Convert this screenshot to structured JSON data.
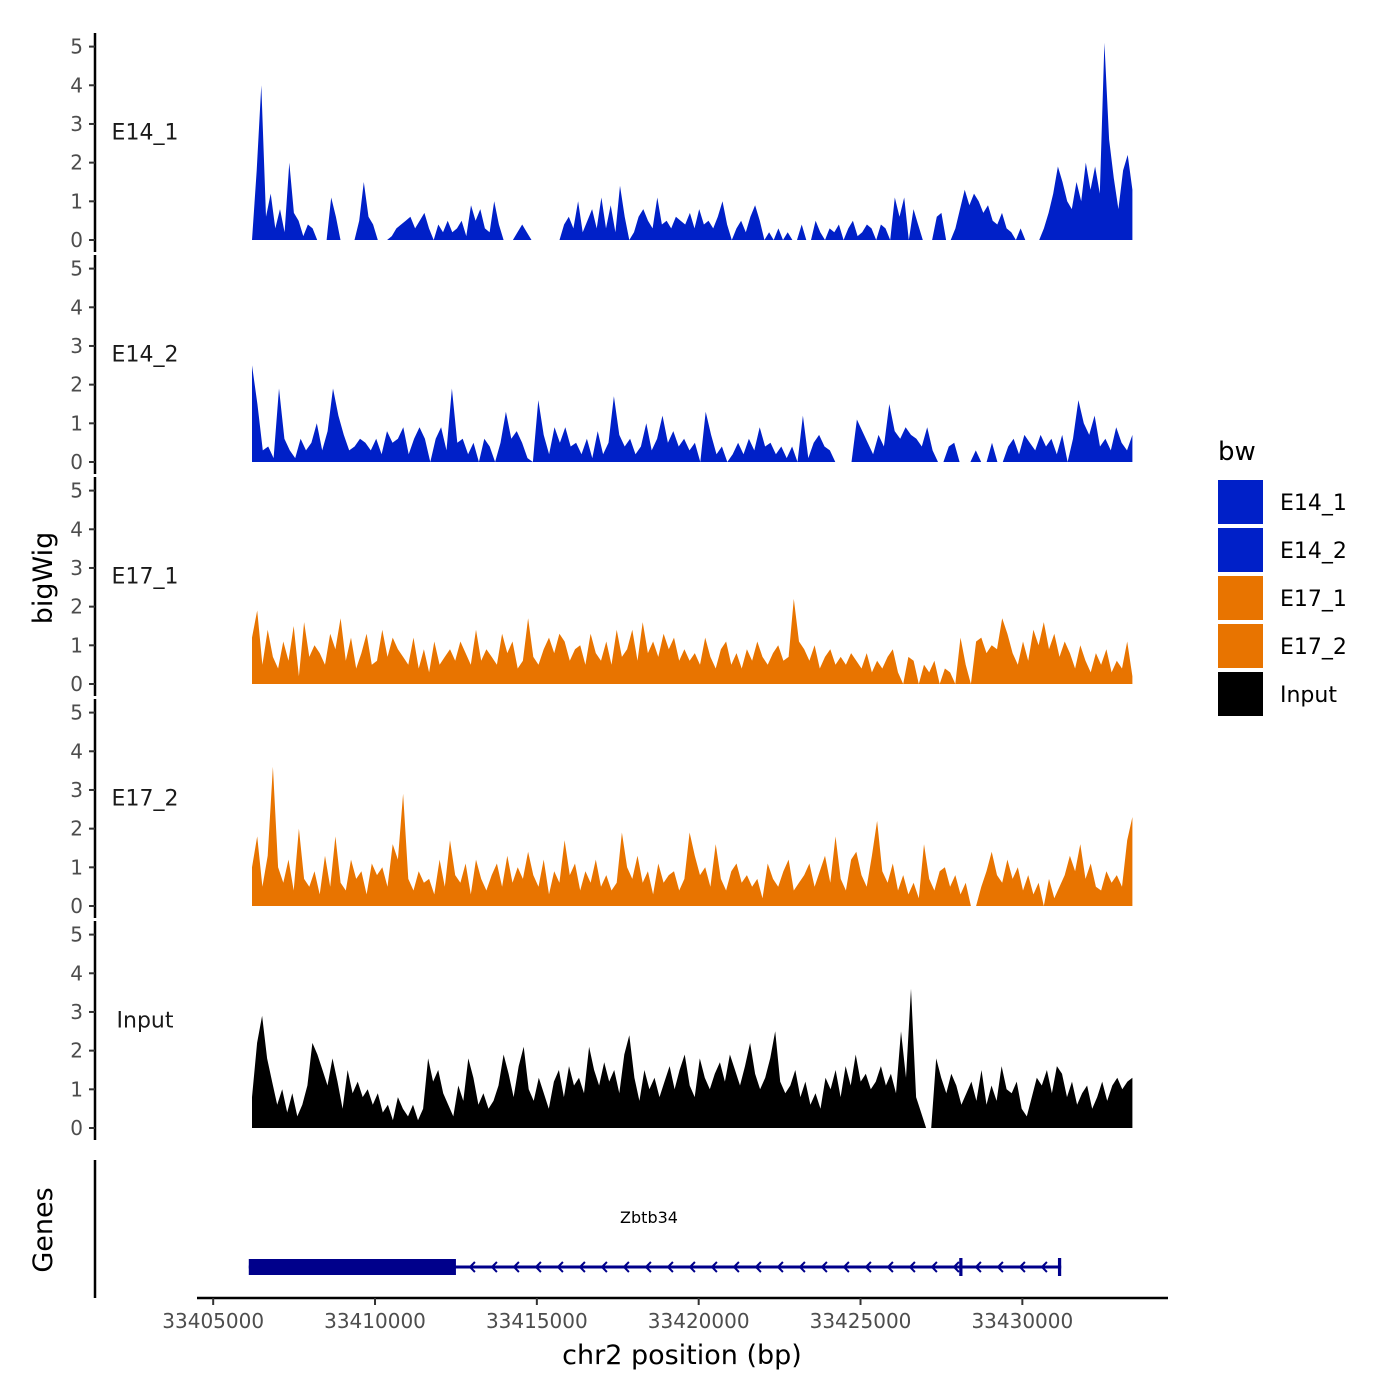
{
  "chart_data": {
    "type": "area",
    "xlabel": "chr2 position (bp)",
    "ylabel": "bigWig",
    "xlim": [
      33404500,
      33434500
    ],
    "ylim": [
      0,
      5.3
    ],
    "x_ticks": [
      33405000,
      33410000,
      33415000,
      33420000,
      33425000,
      33430000
    ],
    "x_tick_labels": [
      "33405000",
      "33410000",
      "33415000",
      "33420000",
      "33425000",
      "33430000"
    ],
    "y_ticks": [
      0,
      1,
      2,
      3,
      4,
      5
    ],
    "y_tick_labels": [
      "0",
      "1",
      "2",
      "3",
      "4",
      "5"
    ],
    "x_range": [
      33406200,
      33433400
    ],
    "legend": {
      "title": "bw",
      "position": "right",
      "entries": [
        {
          "label": "E14_1",
          "color": "#0020c8"
        },
        {
          "label": "E14_2",
          "color": "#0020c8"
        },
        {
          "label": "E17_1",
          "color": "#e87400"
        },
        {
          "label": "E17_2",
          "color": "#e87400"
        },
        {
          "label": "Input",
          "color": "#000000"
        }
      ]
    },
    "series": [
      {
        "name": "E14_1",
        "color": "#0020c8",
        "values": [
          0.0,
          1.8,
          4.0,
          0.6,
          1.2,
          0.3,
          0.8,
          0.2,
          2.0,
          0.7,
          0.5,
          0.1,
          0.4,
          0.3,
          0.0,
          0.0,
          0.0,
          1.1,
          0.6,
          0.0,
          0.0,
          0.0,
          0.0,
          0.5,
          1.5,
          0.6,
          0.4,
          0.0,
          0.0,
          0.0,
          0.1,
          0.3,
          0.4,
          0.5,
          0.6,
          0.3,
          0.5,
          0.7,
          0.3,
          0.0,
          0.4,
          0.2,
          0.5,
          0.2,
          0.3,
          0.5,
          0.1,
          0.9,
          0.5,
          0.8,
          0.3,
          0.2,
          1.0,
          0.4,
          0.0,
          0.0,
          0.0,
          0.2,
          0.4,
          0.2,
          0.0,
          0.0,
          0.0,
          0.0,
          0.0,
          0.0,
          0.0,
          0.4,
          0.6,
          0.3,
          1.0,
          0.2,
          0.5,
          0.8,
          0.3,
          1.1,
          0.3,
          0.9,
          0.2,
          1.4,
          0.6,
          0.0,
          0.2,
          0.6,
          0.8,
          0.5,
          0.3,
          1.1,
          0.4,
          0.5,
          0.3,
          0.6,
          0.5,
          0.4,
          0.7,
          0.3,
          0.8,
          0.4,
          0.5,
          0.3,
          0.6,
          1.0,
          0.4,
          0.0,
          0.3,
          0.5,
          0.2,
          0.6,
          0.9,
          0.5,
          0.0,
          0.2,
          0.0,
          0.3,
          0.0,
          0.2,
          0.0,
          0.0,
          0.4,
          0.0,
          0.0,
          0.5,
          0.2,
          0.0,
          0.3,
          0.2,
          0.4,
          0.0,
          0.3,
          0.5,
          0.1,
          0.2,
          0.4,
          0.3,
          0.0,
          0.4,
          0.3,
          0.0,
          1.1,
          0.6,
          1.1,
          0.0,
          0.8,
          0.4,
          0.0,
          0.0,
          0.0,
          0.6,
          0.7,
          0.0,
          0.0,
          0.3,
          0.8,
          1.3,
          0.9,
          1.2,
          1.0,
          0.7,
          0.9,
          0.5,
          0.4,
          0.7,
          0.3,
          0.2,
          0.0,
          0.3,
          0.0,
          0.0,
          0.0,
          0.0,
          0.3,
          0.7,
          1.2,
          1.9,
          1.5,
          1.0,
          0.8,
          1.5,
          1.0,
          2.0,
          1.3,
          1.9,
          1.2,
          5.1,
          2.6,
          1.6,
          0.8,
          1.8,
          2.2,
          1.3
        ]
      },
      {
        "name": "E14_2",
        "color": "#0020c8",
        "values": [
          2.5,
          1.5,
          0.3,
          0.4,
          0.1,
          1.9,
          0.6,
          0.3,
          0.1,
          0.6,
          0.3,
          0.5,
          1.0,
          0.3,
          0.8,
          1.9,
          1.2,
          0.7,
          0.3,
          0.4,
          0.6,
          0.5,
          0.3,
          0.6,
          0.2,
          0.8,
          0.5,
          0.6,
          0.9,
          0.2,
          0.6,
          0.9,
          0.6,
          0.0,
          0.6,
          0.9,
          0.3,
          1.9,
          0.5,
          0.6,
          0.2,
          0.5,
          0.0,
          0.6,
          0.4,
          0.0,
          0.5,
          1.3,
          0.6,
          0.8,
          0.5,
          0.1,
          0.0,
          1.6,
          0.7,
          0.2,
          0.9,
          0.5,
          0.9,
          0.4,
          0.5,
          0.2,
          0.6,
          0.1,
          0.8,
          0.2,
          0.5,
          1.7,
          0.7,
          0.4,
          0.6,
          0.2,
          0.4,
          1.0,
          0.3,
          0.6,
          1.2,
          0.5,
          0.8,
          0.4,
          0.6,
          0.3,
          0.5,
          0.0,
          1.3,
          0.7,
          0.2,
          0.4,
          0.0,
          0.2,
          0.5,
          0.2,
          0.6,
          0.3,
          0.9,
          0.4,
          0.5,
          0.2,
          0.4,
          0.1,
          0.4,
          0.0,
          1.2,
          0.1,
          0.5,
          0.7,
          0.4,
          0.3,
          0.0,
          0.0,
          0.0,
          0.0,
          1.1,
          0.8,
          0.5,
          0.2,
          0.7,
          0.4,
          1.5,
          0.8,
          0.6,
          0.9,
          0.7,
          0.6,
          0.4,
          0.9,
          0.3,
          0.0,
          0.0,
          0.4,
          0.5,
          0.0,
          0.0,
          0.0,
          0.3,
          0.0,
          0.0,
          0.5,
          0.0,
          0.0,
          0.4,
          0.6,
          0.2,
          0.7,
          0.5,
          0.3,
          0.7,
          0.4,
          0.6,
          0.2,
          0.7,
          0.0,
          0.6,
          1.6,
          1.0,
          0.7,
          1.2,
          0.4,
          0.6,
          0.3,
          0.9,
          0.5,
          0.3,
          0.7
        ]
      },
      {
        "name": "E17_1",
        "color": "#e87400",
        "values": [
          1.2,
          1.9,
          0.5,
          1.4,
          0.7,
          0.4,
          1.1,
          0.6,
          1.5,
          0.2,
          1.6,
          0.7,
          1.0,
          0.8,
          0.5,
          1.3,
          0.9,
          1.7,
          0.6,
          1.2,
          0.4,
          0.8,
          1.3,
          0.5,
          0.6,
          1.4,
          0.7,
          1.2,
          0.9,
          0.7,
          0.5,
          1.2,
          0.4,
          0.9,
          0.3,
          1.1,
          0.5,
          0.7,
          0.9,
          0.6,
          1.1,
          0.8,
          0.5,
          1.4,
          0.6,
          0.9,
          0.7,
          0.5,
          1.3,
          0.8,
          1.1,
          0.4,
          0.6,
          1.7,
          0.7,
          0.5,
          0.9,
          1.2,
          0.8,
          1.3,
          1.1,
          0.6,
          0.9,
          1.0,
          0.5,
          1.3,
          0.8,
          0.6,
          1.1,
          0.5,
          1.4,
          0.7,
          0.9,
          1.4,
          0.6,
          1.6,
          0.8,
          1.1,
          0.7,
          1.3,
          0.9,
          1.2,
          0.6,
          0.9,
          0.6,
          0.8,
          0.5,
          1.2,
          0.7,
          0.4,
          0.9,
          1.1,
          0.5,
          0.8,
          0.4,
          0.9,
          0.6,
          1.1,
          0.7,
          0.5,
          0.8,
          1.0,
          0.6,
          0.7,
          2.2,
          1.1,
          0.9,
          0.6,
          1.0,
          0.4,
          0.7,
          0.9,
          0.5,
          0.7,
          0.5,
          0.8,
          0.6,
          0.4,
          0.8,
          0.3,
          0.6,
          0.4,
          0.7,
          0.9,
          0.3,
          0.0,
          0.7,
          0.6,
          0.0,
          0.5,
          0.3,
          0.6,
          0.0,
          0.4,
          0.3,
          0.0,
          1.2,
          0.5,
          0.0,
          1.1,
          1.2,
          0.8,
          1.0,
          0.9,
          1.7,
          1.3,
          0.8,
          0.5,
          1.1,
          0.6,
          1.4,
          1.0,
          1.6,
          0.9,
          1.3,
          0.7,
          1.1,
          0.8,
          0.4,
          1.0,
          0.6,
          0.3,
          0.8,
          0.5,
          0.9,
          0.3,
          0.6,
          0.4,
          1.1,
          0.2
        ]
      },
      {
        "name": "E17_2",
        "color": "#e87400",
        "values": [
          1.0,
          1.8,
          0.5,
          1.3,
          3.6,
          1.0,
          0.6,
          1.2,
          0.4,
          2.0,
          0.7,
          0.5,
          0.9,
          0.3,
          1.3,
          0.5,
          1.8,
          0.6,
          0.4,
          1.2,
          0.7,
          0.9,
          0.3,
          1.1,
          0.8,
          1.0,
          0.5,
          1.6,
          1.2,
          2.9,
          0.7,
          0.4,
          0.9,
          0.6,
          0.7,
          0.3,
          1.2,
          0.5,
          1.7,
          0.8,
          0.6,
          1.1,
          0.3,
          1.2,
          0.7,
          0.4,
          0.8,
          1.1,
          0.5,
          1.3,
          0.6,
          1.0,
          0.7,
          1.4,
          0.8,
          0.5,
          1.2,
          0.3,
          0.9,
          0.6,
          1.7,
          0.8,
          1.1,
          0.4,
          0.9,
          0.6,
          1.2,
          0.5,
          0.8,
          0.4,
          0.6,
          1.9,
          1.0,
          0.7,
          1.3,
          0.6,
          0.9,
          0.3,
          1.1,
          0.6,
          0.8,
          0.9,
          0.4,
          0.7,
          1.9,
          1.3,
          0.8,
          1.0,
          0.5,
          1.6,
          0.7,
          0.4,
          0.9,
          1.1,
          0.6,
          0.8,
          0.5,
          0.7,
          0.2,
          1.1,
          0.7,
          0.5,
          0.9,
          1.2,
          0.4,
          0.6,
          0.8,
          1.1,
          0.5,
          0.9,
          1.3,
          0.6,
          1.8,
          0.7,
          0.4,
          1.2,
          1.4,
          0.8,
          0.5,
          1.3,
          2.2,
          0.9,
          0.6,
          1.1,
          0.4,
          0.8,
          0.3,
          0.6,
          0.2,
          1.6,
          0.7,
          0.4,
          0.9,
          1.0,
          0.5,
          0.8,
          0.3,
          0.6,
          0.0,
          0.0,
          0.5,
          0.9,
          1.4,
          0.8,
          0.6,
          1.2,
          0.7,
          1.0,
          0.4,
          0.8,
          0.3,
          0.6,
          0.0,
          0.7,
          0.2,
          0.5,
          0.8,
          1.3,
          0.9,
          1.6,
          0.7,
          1.1,
          0.5,
          0.4,
          0.9,
          0.6,
          0.8,
          0.5,
          1.7,
          2.3
        ]
      },
      {
        "name": "Input",
        "color": "#000000",
        "values": [
          0.8,
          2.2,
          2.9,
          1.8,
          1.2,
          0.6,
          1.0,
          0.4,
          0.9,
          0.3,
          0.6,
          1.1,
          2.2,
          1.9,
          1.5,
          1.1,
          1.8,
          1.2,
          0.5,
          1.5,
          0.9,
          1.2,
          0.8,
          1.0,
          0.6,
          0.9,
          0.4,
          0.6,
          0.2,
          0.8,
          0.5,
          0.3,
          0.6,
          0.2,
          0.5,
          1.8,
          1.2,
          1.5,
          0.9,
          0.6,
          0.3,
          1.1,
          0.7,
          1.8,
          1.3,
          0.6,
          0.9,
          0.5,
          0.7,
          1.1,
          1.9,
          1.4,
          0.8,
          1.6,
          2.1,
          1.0,
          0.7,
          1.3,
          0.9,
          0.5,
          1.2,
          1.5,
          0.8,
          1.6,
          1.1,
          1.3,
          0.9,
          2.1,
          1.5,
          1.1,
          1.7,
          1.2,
          1.5,
          0.9,
          1.9,
          2.4,
          1.3,
          0.7,
          1.5,
          1.0,
          1.3,
          0.8,
          1.2,
          1.6,
          1.0,
          1.5,
          1.9,
          1.1,
          0.8,
          1.8,
          1.3,
          1.0,
          1.4,
          1.7,
          1.2,
          1.9,
          1.5,
          1.1,
          1.6,
          2.2,
          1.4,
          1.0,
          1.3,
          1.8,
          2.5,
          1.2,
          0.9,
          1.1,
          1.5,
          0.8,
          1.2,
          0.6,
          0.9,
          0.5,
          1.3,
          1.0,
          1.5,
          0.8,
          1.6,
          1.1,
          1.9,
          1.2,
          1.4,
          1.0,
          1.2,
          1.6,
          1.1,
          1.4,
          0.9,
          2.5,
          1.3,
          3.6,
          0.8,
          0.4,
          0.0,
          0.0,
          1.8,
          1.3,
          0.9,
          1.4,
          1.1,
          0.6,
          0.9,
          1.2,
          0.7,
          1.5,
          0.6,
          1.1,
          0.7,
          1.6,
          1.0,
          0.9,
          1.2,
          0.5,
          0.3,
          0.8,
          1.3,
          1.1,
          1.5,
          0.9,
          1.6,
          1.4,
          0.8,
          1.2,
          0.6,
          0.9,
          1.1,
          0.5,
          0.8,
          1.2,
          0.7,
          1.1,
          1.3,
          1.0,
          1.2,
          1.3
        ]
      }
    ],
    "genes_track": {
      "label": "Genes",
      "genes": [
        {
          "name": "Zbtb34",
          "start": 33406100,
          "end": 33431200,
          "strand": "-",
          "exons": [
            [
              33406100,
              33412500
            ],
            [
              33428050,
              33428150
            ],
            [
              33431100,
              33431200
            ]
          ]
        }
      ]
    }
  }
}
